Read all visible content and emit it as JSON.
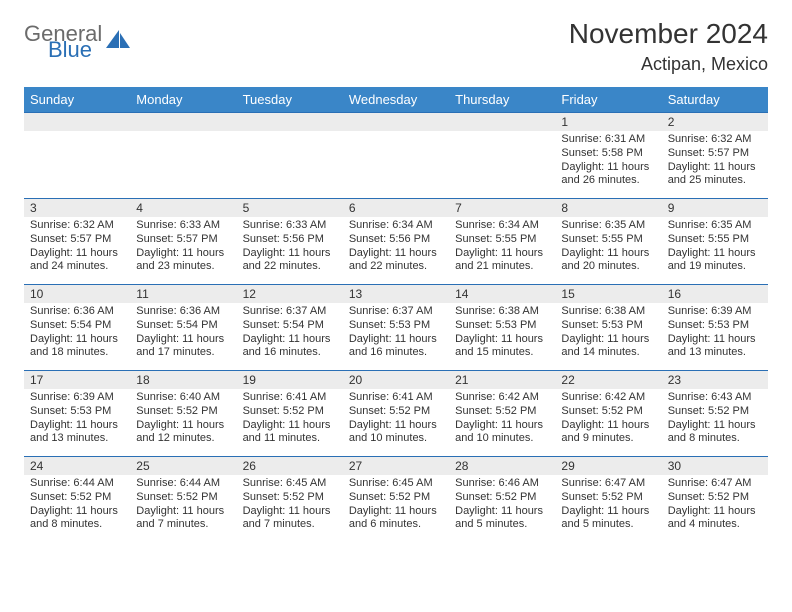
{
  "header": {
    "logo_text1": "General",
    "logo_text2": "Blue",
    "month_title": "November 2024",
    "location": "Actipan, Mexico"
  },
  "colors": {
    "header_bg": "#3a86c8",
    "border": "#2a6fb5",
    "daynum_bg": "#ececec",
    "logo_gray": "#6b6b6b",
    "logo_blue": "#2a6fb5"
  },
  "weekdays": [
    "Sunday",
    "Monday",
    "Tuesday",
    "Wednesday",
    "Thursday",
    "Friday",
    "Saturday"
  ],
  "calendar": {
    "first_weekday_index": 5,
    "days": [
      {
        "n": 1,
        "sunrise": "6:31 AM",
        "sunset": "5:58 PM",
        "daylight": "11 hours and 26 minutes."
      },
      {
        "n": 2,
        "sunrise": "6:32 AM",
        "sunset": "5:57 PM",
        "daylight": "11 hours and 25 minutes."
      },
      {
        "n": 3,
        "sunrise": "6:32 AM",
        "sunset": "5:57 PM",
        "daylight": "11 hours and 24 minutes."
      },
      {
        "n": 4,
        "sunrise": "6:33 AM",
        "sunset": "5:57 PM",
        "daylight": "11 hours and 23 minutes."
      },
      {
        "n": 5,
        "sunrise": "6:33 AM",
        "sunset": "5:56 PM",
        "daylight": "11 hours and 22 minutes."
      },
      {
        "n": 6,
        "sunrise": "6:34 AM",
        "sunset": "5:56 PM",
        "daylight": "11 hours and 22 minutes."
      },
      {
        "n": 7,
        "sunrise": "6:34 AM",
        "sunset": "5:55 PM",
        "daylight": "11 hours and 21 minutes."
      },
      {
        "n": 8,
        "sunrise": "6:35 AM",
        "sunset": "5:55 PM",
        "daylight": "11 hours and 20 minutes."
      },
      {
        "n": 9,
        "sunrise": "6:35 AM",
        "sunset": "5:55 PM",
        "daylight": "11 hours and 19 minutes."
      },
      {
        "n": 10,
        "sunrise": "6:36 AM",
        "sunset": "5:54 PM",
        "daylight": "11 hours and 18 minutes."
      },
      {
        "n": 11,
        "sunrise": "6:36 AM",
        "sunset": "5:54 PM",
        "daylight": "11 hours and 17 minutes."
      },
      {
        "n": 12,
        "sunrise": "6:37 AM",
        "sunset": "5:54 PM",
        "daylight": "11 hours and 16 minutes."
      },
      {
        "n": 13,
        "sunrise": "6:37 AM",
        "sunset": "5:53 PM",
        "daylight": "11 hours and 16 minutes."
      },
      {
        "n": 14,
        "sunrise": "6:38 AM",
        "sunset": "5:53 PM",
        "daylight": "11 hours and 15 minutes."
      },
      {
        "n": 15,
        "sunrise": "6:38 AM",
        "sunset": "5:53 PM",
        "daylight": "11 hours and 14 minutes."
      },
      {
        "n": 16,
        "sunrise": "6:39 AM",
        "sunset": "5:53 PM",
        "daylight": "11 hours and 13 minutes."
      },
      {
        "n": 17,
        "sunrise": "6:39 AM",
        "sunset": "5:53 PM",
        "daylight": "11 hours and 13 minutes."
      },
      {
        "n": 18,
        "sunrise": "6:40 AM",
        "sunset": "5:52 PM",
        "daylight": "11 hours and 12 minutes."
      },
      {
        "n": 19,
        "sunrise": "6:41 AM",
        "sunset": "5:52 PM",
        "daylight": "11 hours and 11 minutes."
      },
      {
        "n": 20,
        "sunrise": "6:41 AM",
        "sunset": "5:52 PM",
        "daylight": "11 hours and 10 minutes."
      },
      {
        "n": 21,
        "sunrise": "6:42 AM",
        "sunset": "5:52 PM",
        "daylight": "11 hours and 10 minutes."
      },
      {
        "n": 22,
        "sunrise": "6:42 AM",
        "sunset": "5:52 PM",
        "daylight": "11 hours and 9 minutes."
      },
      {
        "n": 23,
        "sunrise": "6:43 AM",
        "sunset": "5:52 PM",
        "daylight": "11 hours and 8 minutes."
      },
      {
        "n": 24,
        "sunrise": "6:44 AM",
        "sunset": "5:52 PM",
        "daylight": "11 hours and 8 minutes."
      },
      {
        "n": 25,
        "sunrise": "6:44 AM",
        "sunset": "5:52 PM",
        "daylight": "11 hours and 7 minutes."
      },
      {
        "n": 26,
        "sunrise": "6:45 AM",
        "sunset": "5:52 PM",
        "daylight": "11 hours and 7 minutes."
      },
      {
        "n": 27,
        "sunrise": "6:45 AM",
        "sunset": "5:52 PM",
        "daylight": "11 hours and 6 minutes."
      },
      {
        "n": 28,
        "sunrise": "6:46 AM",
        "sunset": "5:52 PM",
        "daylight": "11 hours and 5 minutes."
      },
      {
        "n": 29,
        "sunrise": "6:47 AM",
        "sunset": "5:52 PM",
        "daylight": "11 hours and 5 minutes."
      },
      {
        "n": 30,
        "sunrise": "6:47 AM",
        "sunset": "5:52 PM",
        "daylight": "11 hours and 4 minutes."
      }
    ]
  },
  "labels": {
    "sunrise": "Sunrise:",
    "sunset": "Sunset:",
    "daylight": "Daylight:"
  }
}
